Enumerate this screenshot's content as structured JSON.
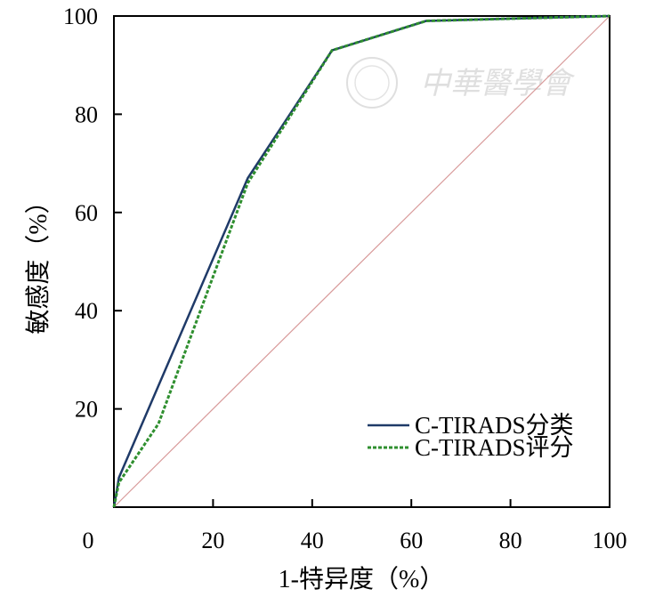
{
  "chart_data": {
    "type": "line",
    "xlabel": "1-特异度（%）",
    "ylabel": "敏感度（%）",
    "xlim": [
      0,
      100
    ],
    "ylim": [
      0,
      100
    ],
    "x_ticks": [
      "0",
      "20",
      "40",
      "60",
      "80",
      "100"
    ],
    "y_ticks": [
      "20",
      "40",
      "60",
      "80",
      "100"
    ],
    "grid": false,
    "legend_position": "bottom-right",
    "series": [
      {
        "name": "C-TIRADS分类",
        "color": "#1f3a68",
        "style": "solid",
        "x": [
          0,
          1,
          27,
          44,
          63,
          100
        ],
        "y": [
          0,
          6,
          67,
          93,
          99,
          100
        ]
      },
      {
        "name": "C-TIRADS评分",
        "color": "#2f8f2f",
        "style": "dashed",
        "x": [
          0,
          1,
          9,
          27,
          44,
          63,
          100
        ],
        "y": [
          0,
          5,
          17,
          66,
          93,
          99,
          100
        ]
      },
      {
        "name": "",
        "color": "#d89a9a",
        "style": "thin",
        "x": [
          0,
          100
        ],
        "y": [
          0,
          100
        ]
      }
    ]
  },
  "watermark": {
    "text": "中華醫學會"
  }
}
